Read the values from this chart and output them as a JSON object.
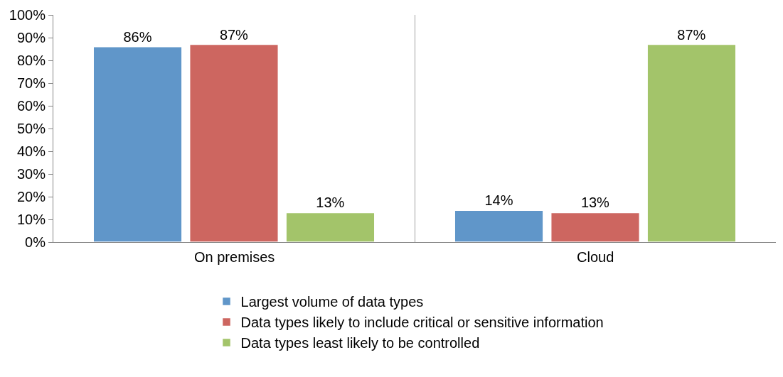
{
  "chart_data": {
    "type": "bar",
    "categories": [
      "On premises",
      "Cloud"
    ],
    "series": [
      {
        "name": "Largest volume of data types",
        "color": "#6096c9",
        "values": [
          86,
          14
        ],
        "value_labels": [
          "86%",
          "14%"
        ]
      },
      {
        "name": "Data types likely to include critical or sensitive information",
        "color": "#cd6660",
        "values": [
          87,
          13
        ],
        "value_labels": [
          "87%",
          "13%"
        ]
      },
      {
        "name": "Data types least likely to be controlled",
        "color": "#a3c46a",
        "values": [
          13,
          87
        ],
        "value_labels": [
          "13%",
          "87%"
        ]
      }
    ],
    "ylim": [
      0,
      100
    ],
    "yticks": [
      {
        "value": 0,
        "label": "0%"
      },
      {
        "value": 10,
        "label": "10%"
      },
      {
        "value": 20,
        "label": "20%"
      },
      {
        "value": 30,
        "label": "30%"
      },
      {
        "value": 40,
        "label": "40%"
      },
      {
        "value": 50,
        "label": "50%"
      },
      {
        "value": 60,
        "label": "60%"
      },
      {
        "value": 70,
        "label": "70%"
      },
      {
        "value": 80,
        "label": "80%"
      },
      {
        "value": 90,
        "label": "90%"
      },
      {
        "value": 100,
        "label": "100%"
      }
    ],
    "grid": "x",
    "legend": "bottom"
  }
}
